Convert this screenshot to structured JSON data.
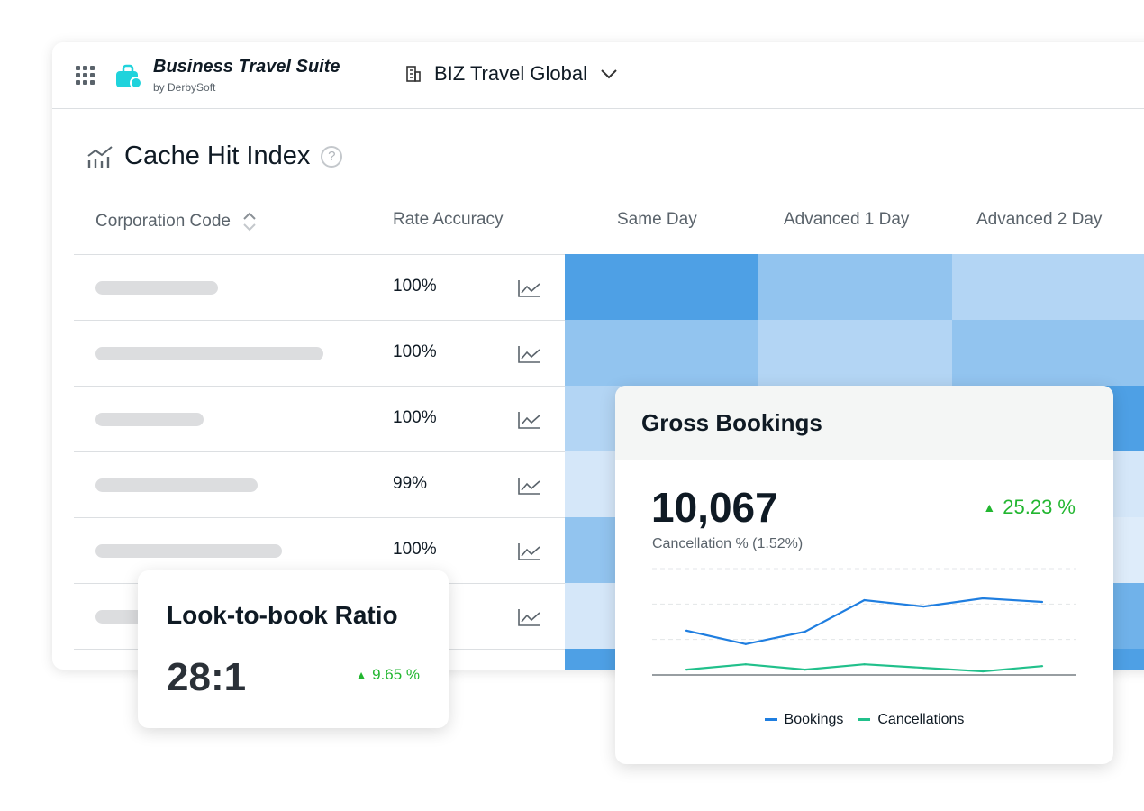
{
  "app": {
    "brand": "Business Travel Suite",
    "byline": "by DerbySoft",
    "org": "BIZ Travel Global"
  },
  "section": {
    "title": "Cache Hit Index",
    "help": "?"
  },
  "table": {
    "headers": [
      "Corporation Code",
      "Rate Accuracy",
      "Same Day",
      "Advanced 1 Day",
      "Advanced 2 Day"
    ],
    "rows": [
      {
        "accuracy": "100%",
        "heat": [
          0.9,
          0.5,
          0.3
        ]
      },
      {
        "accuracy": "100%",
        "heat": [
          0.5,
          0.3,
          0.5
        ]
      },
      {
        "accuracy": "100%",
        "heat": [
          0.3,
          0.3,
          0.9
        ]
      },
      {
        "accuracy": "99%",
        "heat": [
          0.1,
          0.1,
          0.1
        ]
      },
      {
        "accuracy": "100%",
        "heat": [
          0.5,
          0.5,
          0.05
        ]
      },
      {
        "accuracy": "",
        "heat": [
          0.1,
          0.1,
          0.7
        ]
      },
      {
        "accuracy": "",
        "heat": [
          0.9,
          0.9,
          0.9
        ]
      }
    ]
  },
  "look_to_book": {
    "title": "Look-to-book Ratio",
    "value": "28:1",
    "change": "9.65 %"
  },
  "gross_bookings": {
    "title": "Gross Bookings",
    "value": "10,067",
    "subtitle": "Cancellation % (1.52%)",
    "change": "25.23 %"
  },
  "chart_data": {
    "type": "line",
    "x": [
      1,
      2,
      3,
      4,
      5,
      6,
      7
    ],
    "series": [
      {
        "name": "Bookings",
        "color": "#1f7ee0",
        "values": [
          1.25,
          0.87,
          1.22,
          2.11,
          1.93,
          2.16,
          2.06
        ]
      },
      {
        "name": "Cancellations",
        "color": "#21c08b",
        "values": [
          0.15,
          0.3,
          0.15,
          0.3,
          0.2,
          0.1,
          0.25
        ]
      }
    ],
    "ylim": [
      0,
      3
    ],
    "grid": true,
    "legend": "bottom"
  },
  "colors": {
    "heat_dark": "#3d97e3",
    "heat_light": "#e6f0fb",
    "up": "#22b630"
  }
}
